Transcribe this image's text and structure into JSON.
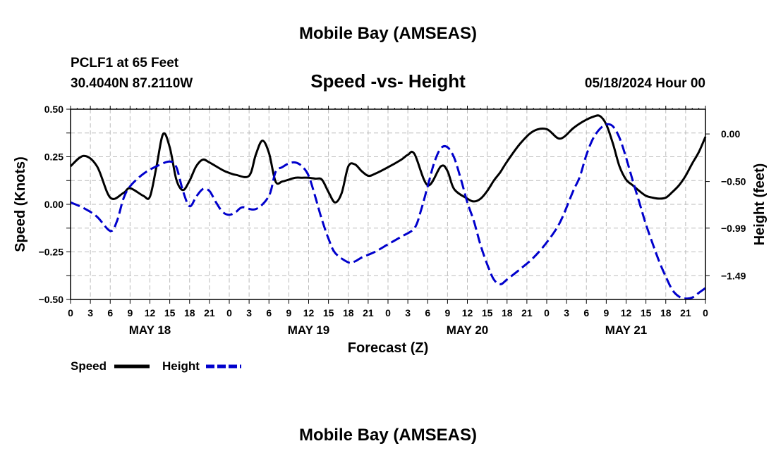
{
  "title": "Mobile Bay (AMSEAS)",
  "footer_title": "Mobile Bay (AMSEAS)",
  "station": {
    "name": "PCLF1 at 65 Feet",
    "location": "30.4040N  87.2110W"
  },
  "chart_title": "Speed -vs- Height",
  "run_time": "05/18/2024 Hour 00",
  "chart_data": {
    "type": "line",
    "xlabel": "Forecast (Z)",
    "ylabel_left": "Speed (Knots)",
    "ylabel_right": "Height (feet)",
    "xlim": [
      0,
      96
    ],
    "ylim_left": [
      -0.5,
      0.5
    ],
    "ylim_right": [
      -1.74,
      0.26
    ],
    "x_tick_labels": [
      "0",
      "3",
      "6",
      "9",
      "12",
      "15",
      "18",
      "21",
      "0",
      "3",
      "6",
      "9",
      "12",
      "15",
      "18",
      "21",
      "0",
      "3",
      "6",
      "9",
      "12",
      "15",
      "18",
      "21",
      "0",
      "3",
      "6",
      "9",
      "12",
      "15",
      "18",
      "21",
      "0"
    ],
    "y_ticks_left": [
      "0.50",
      "0.25",
      "0.00",
      "−0.25",
      "−0.50"
    ],
    "y_ticks_right": [
      "0.00",
      "−0.50",
      "−0.99",
      "−1.49"
    ],
    "day_labels": [
      "MAY 18",
      "MAY 19",
      "MAY 20",
      "MAY 21"
    ],
    "grid": true,
    "legend_position": "bottom-left",
    "colors": {
      "speed": "#000000",
      "height": "#0000cc"
    },
    "series": [
      {
        "name": "Speed",
        "axis": "left",
        "x": [
          0,
          2,
          4,
          6,
          8,
          9,
          11,
          12,
          13,
          14,
          15,
          16,
          17,
          18,
          19,
          20,
          21,
          23,
          24,
          25,
          27,
          28,
          29,
          30,
          31,
          32,
          33,
          34,
          35,
          36,
          37,
          38,
          39,
          40,
          41,
          42,
          43,
          44,
          45,
          46,
          48,
          50,
          51,
          52,
          54,
          56,
          57,
          58,
          60,
          61,
          62,
          63,
          64,
          65,
          66,
          68,
          70,
          72,
          74,
          76,
          77,
          78,
          79,
          80,
          81,
          82,
          83,
          84,
          85,
          86,
          87,
          88,
          89,
          90,
          91,
          92,
          93,
          94,
          95,
          96
        ],
        "y": [
          0.2,
          0.255,
          0.2,
          0.035,
          0.06,
          0.085,
          0.045,
          0.04,
          0.2,
          0.37,
          0.3,
          0.13,
          0.075,
          0.125,
          0.2,
          0.235,
          0.22,
          0.18,
          0.165,
          0.155,
          0.15,
          0.26,
          0.335,
          0.27,
          0.12,
          0.12,
          0.13,
          0.14,
          0.14,
          0.14,
          0.135,
          0.13,
          0.065,
          0.01,
          0.06,
          0.2,
          0.21,
          0.175,
          0.15,
          0.16,
          0.195,
          0.235,
          0.26,
          0.265,
          0.1,
          0.2,
          0.175,
          0.08,
          0.03,
          0.015,
          0.03,
          0.07,
          0.125,
          0.17,
          0.225,
          0.32,
          0.385,
          0.395,
          0.345,
          0.4,
          0.425,
          0.445,
          0.46,
          0.465,
          0.42,
          0.32,
          0.2,
          0.13,
          0.1,
          0.07,
          0.045,
          0.035,
          0.03,
          0.035,
          0.065,
          0.1,
          0.15,
          0.215,
          0.275,
          0.355
        ]
      },
      {
        "name": "Height",
        "axis": "right",
        "x": [
          0,
          2,
          4,
          6,
          7,
          8,
          9,
          11,
          13,
          15,
          16,
          17,
          18,
          19,
          20,
          21,
          22,
          23,
          24,
          25,
          26,
          28,
          30,
          31,
          32,
          33,
          34,
          35,
          36,
          37,
          38,
          39,
          40,
          42,
          43,
          44,
          46,
          48,
          50,
          52,
          53,
          54,
          55,
          56,
          57,
          58,
          59,
          60,
          61,
          62,
          63,
          64,
          65,
          66,
          68,
          70,
          72,
          74,
          76,
          77,
          78,
          79,
          80,
          81,
          82,
          83,
          84,
          85,
          86,
          87,
          88,
          89,
          90,
          91,
          92,
          93,
          94,
          95,
          96
        ],
        "y": [
          -0.72,
          -0.78,
          -0.87,
          -1.02,
          -0.92,
          -0.68,
          -0.55,
          -0.42,
          -0.34,
          -0.29,
          -0.35,
          -0.6,
          -0.76,
          -0.66,
          -0.58,
          -0.6,
          -0.72,
          -0.82,
          -0.85,
          -0.82,
          -0.77,
          -0.79,
          -0.65,
          -0.4,
          -0.35,
          -0.31,
          -0.3,
          -0.34,
          -0.44,
          -0.66,
          -0.9,
          -1.1,
          -1.25,
          -1.35,
          -1.34,
          -1.3,
          -1.24,
          -1.16,
          -1.08,
          -0.99,
          -0.8,
          -0.55,
          -0.3,
          -0.15,
          -0.14,
          -0.25,
          -0.47,
          -0.72,
          -0.92,
          -1.17,
          -1.37,
          -1.53,
          -1.58,
          -1.53,
          -1.42,
          -1.3,
          -1.14,
          -0.93,
          -0.6,
          -0.45,
          -0.22,
          -0.05,
          0.05,
          0.1,
          0.08,
          -0.04,
          -0.25,
          -0.49,
          -0.72,
          -0.95,
          -1.15,
          -1.34,
          -1.5,
          -1.64,
          -1.71,
          -1.73,
          -1.72,
          -1.67,
          -1.62
        ]
      }
    ]
  }
}
